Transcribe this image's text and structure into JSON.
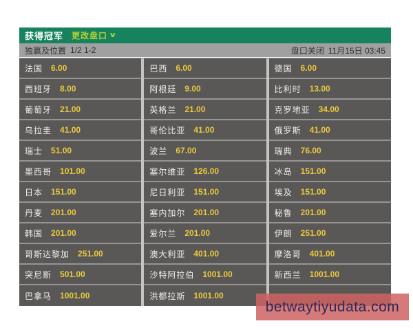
{
  "header": {
    "title": "获得冠军",
    "change_odds": "更改盘口",
    "chevron_icon": "∨"
  },
  "subheader": {
    "market": "独赢及位置",
    "position": "1/2 1-2",
    "status": "盘口关闭",
    "close_time": "11月15日 03:45"
  },
  "grid": {
    "columns": [
      [
        {
          "team": "法国",
          "odds": "6.00"
        },
        {
          "team": "西班牙",
          "odds": "8.00"
        },
        {
          "team": "葡萄牙",
          "odds": "21.00"
        },
        {
          "team": "乌拉圭",
          "odds": "41.00"
        },
        {
          "team": "瑞士",
          "odds": "51.00"
        },
        {
          "team": "墨西哥",
          "odds": "101.00"
        },
        {
          "team": "日本",
          "odds": "151.00"
        },
        {
          "team": "丹麦",
          "odds": "201.00"
        },
        {
          "team": "韩国",
          "odds": "201.00"
        },
        {
          "team": "哥斯达黎加",
          "odds": "251.00"
        },
        {
          "team": "突尼斯",
          "odds": "501.00"
        },
        {
          "team": "巴拿马",
          "odds": "1001.00"
        }
      ],
      [
        {
          "team": "巴西",
          "odds": "6.00"
        },
        {
          "team": "阿根廷",
          "odds": "9.00"
        },
        {
          "team": "英格兰",
          "odds": "21.00"
        },
        {
          "team": "哥伦比亚",
          "odds": "41.00"
        },
        {
          "team": "波兰",
          "odds": "67.00"
        },
        {
          "team": "塞尔维亚",
          "odds": "126.00"
        },
        {
          "team": "尼日利亚",
          "odds": "151.00"
        },
        {
          "team": "塞内加尔",
          "odds": "201.00"
        },
        {
          "team": "爱尔兰",
          "odds": "201.00"
        },
        {
          "team": "澳大利亚",
          "odds": "401.00"
        },
        {
          "team": "沙特阿拉伯",
          "odds": "1001.00"
        },
        {
          "team": "洪都拉斯",
          "odds": "1001.00"
        }
      ],
      [
        {
          "team": "德国",
          "odds": "6.00"
        },
        {
          "team": "比利时",
          "odds": "13.00"
        },
        {
          "team": "克罗地亚",
          "odds": "34.00"
        },
        {
          "team": "俄罗斯",
          "odds": "41.00"
        },
        {
          "team": "瑞典",
          "odds": "76.00"
        },
        {
          "team": "冰岛",
          "odds": "151.00"
        },
        {
          "team": "埃及",
          "odds": "151.00"
        },
        {
          "team": "秘鲁",
          "odds": "201.00"
        },
        {
          "team": "伊朗",
          "odds": "251.00"
        },
        {
          "team": "摩洛哥",
          "odds": "401.00"
        },
        {
          "team": "新西兰",
          "odds": "1001.00"
        },
        {
          "team": "",
          "odds": ""
        }
      ]
    ]
  },
  "watermark": {
    "text": "betwaytiyudata.com"
  },
  "colors": {
    "header_green": "#16825e",
    "accent_yellow_green": "#b5d234",
    "odds_gold": "#e9c93e",
    "cell_bg": "#5a5856",
    "subheader_gray": "#a0a0a0",
    "watermark_red": "#ce6262",
    "watermark_text": "#2b295c"
  }
}
